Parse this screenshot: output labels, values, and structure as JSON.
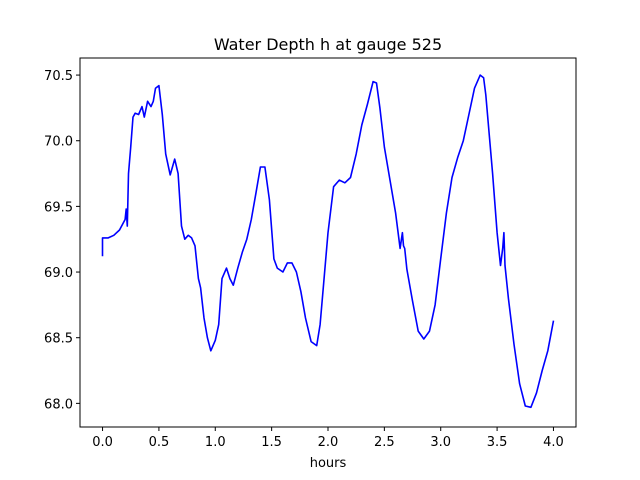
{
  "chart_data": {
    "type": "line",
    "title": "Water Depth h at gauge 525",
    "xlabel": "hours",
    "ylabel": "",
    "xlim": [
      -0.2,
      4.2
    ],
    "ylim": [
      67.82,
      70.63
    ],
    "xticks": [
      "0.0",
      "0.5",
      "1.0",
      "1.5",
      "2.0",
      "2.5",
      "3.0",
      "3.5",
      "4.0"
    ],
    "yticks": [
      "68.0",
      "68.5",
      "69.0",
      "69.5",
      "70.0",
      "70.5"
    ],
    "grid": false,
    "line_color": "#0000ff",
    "series": [
      {
        "x": [
          0.0,
          0.0,
          0.05,
          0.1,
          0.15,
          0.2,
          0.21,
          0.22,
          0.23,
          0.25,
          0.27,
          0.29,
          0.32,
          0.35,
          0.37,
          0.4,
          0.43,
          0.45,
          0.47,
          0.5,
          0.53,
          0.56,
          0.6,
          0.64,
          0.67,
          0.7,
          0.73,
          0.76,
          0.79,
          0.82,
          0.85,
          0.87,
          0.9,
          0.93,
          0.96,
          1.0,
          1.03,
          1.06,
          1.1,
          1.13,
          1.16,
          1.2,
          1.24,
          1.28,
          1.32,
          1.36,
          1.4,
          1.44,
          1.48,
          1.52,
          1.55,
          1.6,
          1.64,
          1.68,
          1.72,
          1.76,
          1.8,
          1.85,
          1.9,
          1.93,
          1.96,
          2.0,
          2.05,
          2.1,
          2.15,
          2.2,
          2.25,
          2.3,
          2.35,
          2.4,
          2.43,
          2.46,
          2.5,
          2.55,
          2.6,
          2.64,
          2.66,
          2.67,
          2.68,
          2.7,
          2.75,
          2.8,
          2.85,
          2.9,
          2.95,
          3.0,
          3.05,
          3.1,
          3.15,
          3.2,
          3.25,
          3.3,
          3.35,
          3.38,
          3.4,
          3.43,
          3.46,
          3.5,
          3.53,
          3.55,
          3.56,
          3.57,
          3.6,
          3.65,
          3.7,
          3.75,
          3.8,
          3.85,
          3.9,
          3.95,
          4.0
        ],
        "y": [
          69.12,
          69.26,
          69.26,
          69.28,
          69.32,
          69.4,
          69.48,
          69.35,
          69.75,
          69.95,
          70.18,
          70.21,
          70.2,
          70.26,
          70.18,
          70.3,
          70.26,
          70.3,
          70.4,
          70.42,
          70.2,
          69.9,
          69.74,
          69.86,
          69.75,
          69.35,
          69.25,
          69.28,
          69.26,
          69.2,
          68.95,
          68.88,
          68.65,
          68.5,
          68.4,
          68.48,
          68.6,
          68.95,
          69.03,
          68.95,
          68.9,
          69.03,
          69.15,
          69.25,
          69.4,
          69.6,
          69.8,
          69.8,
          69.55,
          69.1,
          69.03,
          69.0,
          69.07,
          69.07,
          69.0,
          68.85,
          68.65,
          68.47,
          68.44,
          68.6,
          68.9,
          69.3,
          69.65,
          69.7,
          69.68,
          69.72,
          69.9,
          70.12,
          70.28,
          70.45,
          70.44,
          70.25,
          69.95,
          69.7,
          69.45,
          69.18,
          69.3,
          69.2,
          69.18,
          69.02,
          68.78,
          68.55,
          68.49,
          68.55,
          68.75,
          69.1,
          69.45,
          69.72,
          69.87,
          70.0,
          70.2,
          70.4,
          70.5,
          70.48,
          70.35,
          70.05,
          69.75,
          69.3,
          69.05,
          69.18,
          69.3,
          69.05,
          68.8,
          68.45,
          68.15,
          67.98,
          67.97,
          68.08,
          68.25,
          68.4,
          68.63
        ]
      }
    ]
  }
}
